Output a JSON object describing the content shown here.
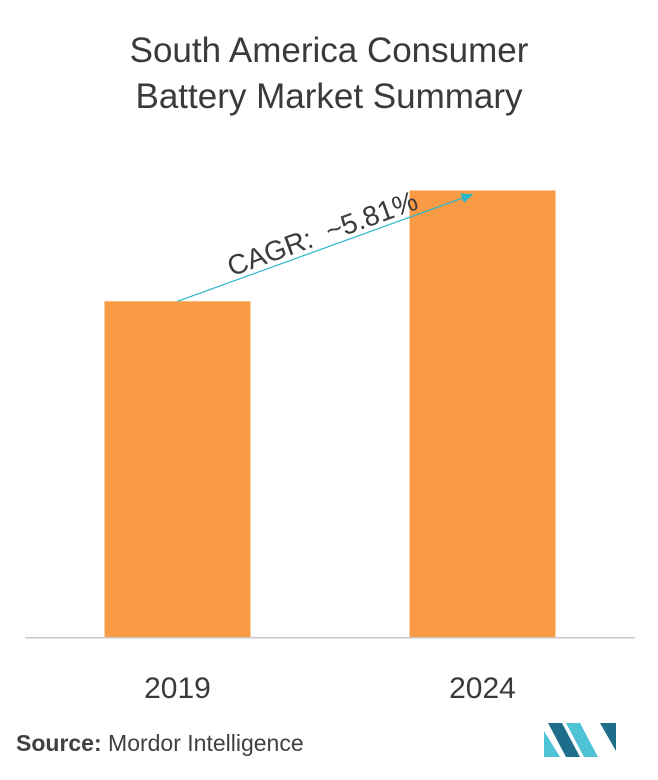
{
  "chart_data": {
    "type": "bar",
    "title_lines": [
      "South America Consumer",
      "Battery Market Summary"
    ],
    "categories": [
      "2019",
      "2024"
    ],
    "values": [
      1.0,
      1.33
    ],
    "ylim": [
      0,
      1.4
    ],
    "bar_color": "#f99b45",
    "grid": false,
    "annotation": "CAGR:  ~5.81%",
    "annotation_color": "#2ab5c9"
  },
  "footer": {
    "source_label": "Source:",
    "source_text": "Mordor Intelligence"
  },
  "colors": {
    "title": "#3a3a3a",
    "axis": "#c8c8c8",
    "logo_dark": "#1d6e8a",
    "logo_light": "#4fc3d6"
  },
  "icons": {
    "logo": "mordor-intelligence-logo-icon"
  }
}
